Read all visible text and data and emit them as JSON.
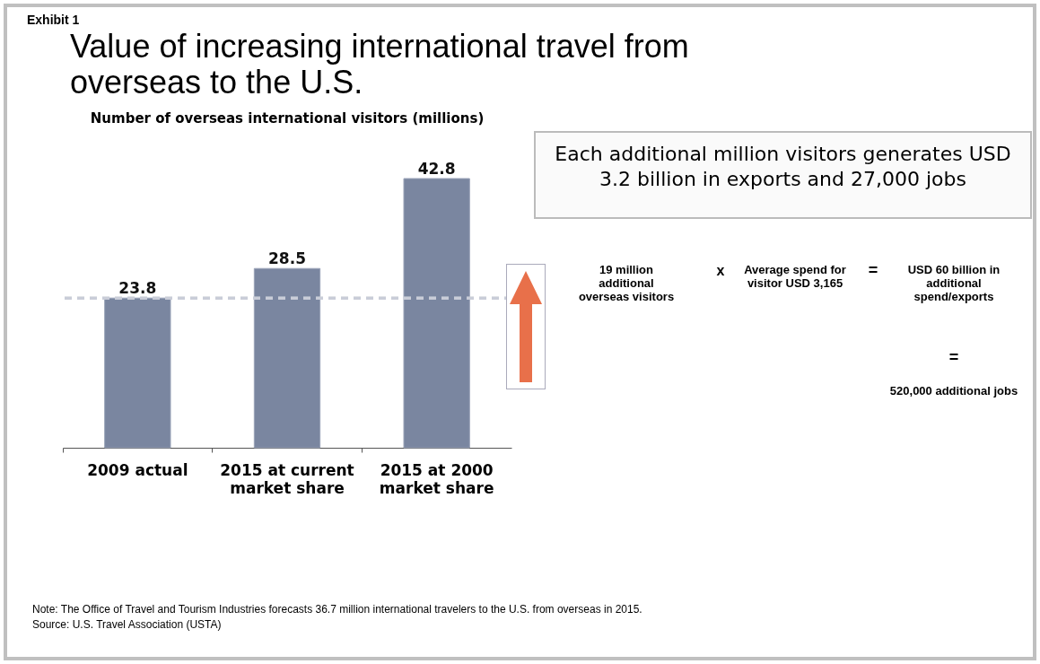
{
  "chart_data": {
    "type": "bar",
    "title": "Value of increasing international travel from overseas to the U.S.",
    "subtitle": "Number of overseas international visitors (millions)",
    "categories": [
      "2009 actual",
      "2015 at current market share",
      "2015 at 2000 market share"
    ],
    "values": [
      23.8,
      28.5,
      42.8
    ],
    "color": "#7a86a0",
    "data_labels": true,
    "ref_lines": [
      {
        "axis": "y",
        "value": 23.8,
        "line_style": "dashed",
        "color": "#c9cdd8"
      }
    ],
    "annotations": [
      "Exhibit 1",
      "Each additional million visitors generates USD 3.2 billion in exports and 27,000 jobs",
      "19 million additional overseas visitors",
      "x",
      "Average spend for visitor USD 3,165",
      "=",
      "USD 60 billion in additional spend/exports",
      "=",
      "520,000 additional jobs",
      "Note:  The Office of Travel and Tourism Industries forecasts 36.7 million international travelers to the U.S. from overseas in 2015.",
      "Source:  U.S. Travel Association (USTA)"
    ]
  }
}
